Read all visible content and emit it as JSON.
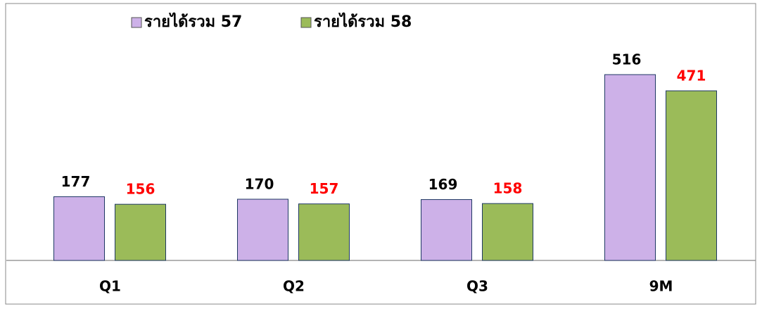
{
  "chart_data": {
    "type": "bar",
    "categories": [
      "Q1",
      "Q2",
      "Q3",
      "9M"
    ],
    "series": [
      {
        "name": "รายได้รวม 57",
        "color": "#cdb1e8",
        "label_color": "#000000",
        "values": [
          177,
          170,
          169,
          516
        ]
      },
      {
        "name": "รายได้รวม 58",
        "color": "#9bbb59",
        "label_color": "#ff0000",
        "values": [
          156,
          157,
          158,
          471
        ]
      }
    ],
    "legend": "top"
  }
}
